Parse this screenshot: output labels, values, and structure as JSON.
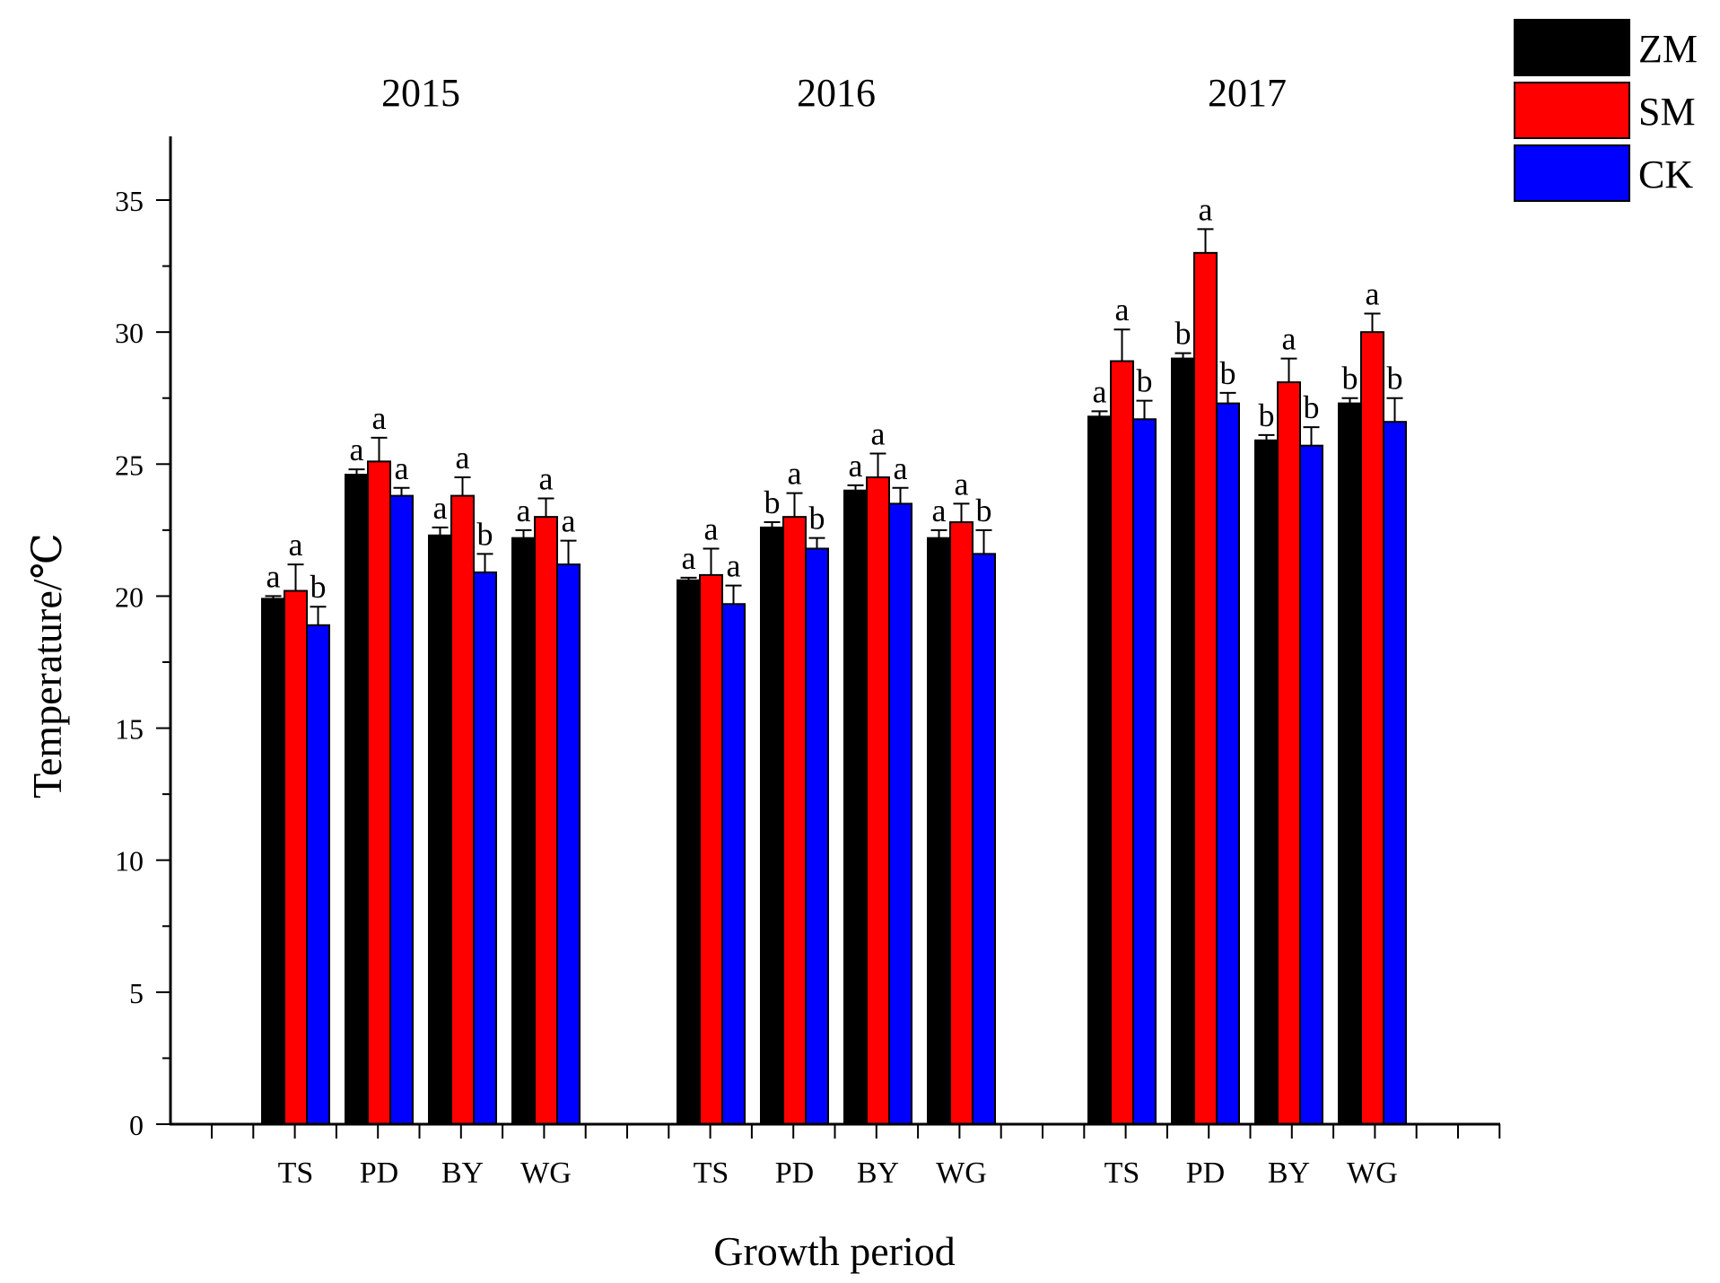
{
  "chart_data": {
    "type": "bar",
    "title": "",
    "xlabel": "Growth period",
    "ylabel": "Temperature/℃",
    "ylim": [
      0,
      37
    ],
    "yticks": [
      0,
      5,
      10,
      15,
      20,
      25,
      30,
      35
    ],
    "grid": false,
    "legend_position": "top-right",
    "series": [
      {
        "name": "ZM",
        "color": "#000000"
      },
      {
        "name": "SM",
        "color": "#ff0000"
      },
      {
        "name": "CK",
        "color": "#0000ff"
      }
    ],
    "groups": [
      {
        "year": "2015",
        "periods": [
          {
            "label": "TS",
            "values": [
              19.9,
              20.2,
              18.9
            ],
            "errors": [
              0.1,
              1.0,
              0.7
            ],
            "letters": [
              "a",
              "a",
              "b"
            ]
          },
          {
            "label": "PD",
            "values": [
              24.6,
              25.1,
              23.8
            ],
            "errors": [
              0.2,
              0.9,
              0.3
            ],
            "letters": [
              "a",
              "a",
              "a"
            ]
          },
          {
            "label": "BY",
            "values": [
              22.3,
              23.8,
              20.9
            ],
            "errors": [
              0.3,
              0.7,
              0.7
            ],
            "letters": [
              "a",
              "a",
              "b"
            ]
          },
          {
            "label": "WG",
            "values": [
              22.2,
              23.0,
              21.2
            ],
            "errors": [
              0.3,
              0.7,
              0.9
            ],
            "letters": [
              "a",
              "a",
              "a"
            ]
          }
        ]
      },
      {
        "year": "2016",
        "periods": [
          {
            "label": "TS",
            "values": [
              20.6,
              20.8,
              19.7
            ],
            "errors": [
              0.1,
              1.0,
              0.7
            ],
            "letters": [
              "a",
              "a",
              "a"
            ]
          },
          {
            "label": "PD",
            "values": [
              22.6,
              23.0,
              21.8
            ],
            "errors": [
              0.2,
              0.9,
              0.4
            ],
            "letters": [
              "b",
              "a",
              "b"
            ]
          },
          {
            "label": "BY",
            "values": [
              24.0,
              24.5,
              23.5
            ],
            "errors": [
              0.2,
              0.9,
              0.6
            ],
            "letters": [
              "a",
              "a",
              "a"
            ]
          },
          {
            "label": "WG",
            "values": [
              22.2,
              22.8,
              21.6
            ],
            "errors": [
              0.3,
              0.7,
              0.9
            ],
            "letters": [
              "a",
              "a",
              "b"
            ]
          }
        ]
      },
      {
        "year": "2017",
        "periods": [
          {
            "label": "TS",
            "values": [
              26.8,
              28.9,
              26.7
            ],
            "errors": [
              0.2,
              1.2,
              0.7
            ],
            "letters": [
              "a",
              "a",
              "b"
            ]
          },
          {
            "label": "PD",
            "values": [
              29.0,
              33.0,
              27.3
            ],
            "errors": [
              0.2,
              0.9,
              0.4
            ],
            "letters": [
              "b",
              "a",
              "b"
            ]
          },
          {
            "label": "BY",
            "values": [
              25.9,
              28.1,
              25.7
            ],
            "errors": [
              0.2,
              0.9,
              0.7
            ],
            "letters": [
              "b",
              "a",
              "b"
            ]
          },
          {
            "label": "WG",
            "values": [
              27.3,
              30.0,
              26.6
            ],
            "errors": [
              0.2,
              0.7,
              0.9
            ],
            "letters": [
              "b",
              "a",
              "b"
            ]
          }
        ]
      }
    ]
  }
}
